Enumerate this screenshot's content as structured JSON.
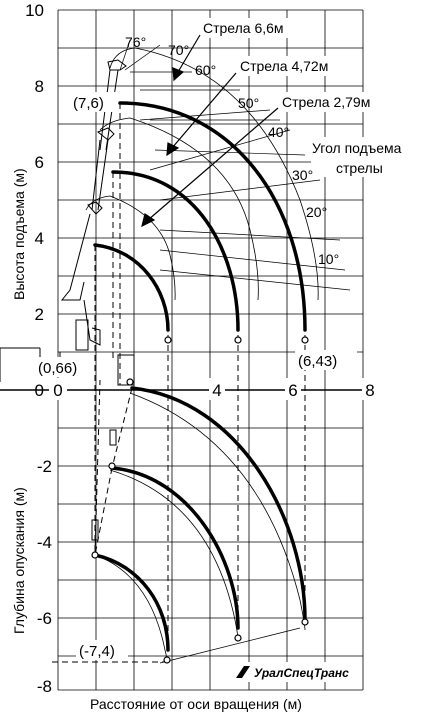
{
  "y_ticks": [
    "10",
    "8",
    "6",
    "4",
    "2",
    "0",
    "-2",
    "-4",
    "-6",
    "-8"
  ],
  "x_ticks": [
    "0",
    "4",
    "6",
    "8"
  ],
  "y_title_upper": "Высота подъема (м)",
  "y_title_lower": "Глубина опускания (м)",
  "x_title": "Расстояние от оси вращения (м)",
  "angle_title_line1": "Угол подъема",
  "angle_title_line2": "стрелы",
  "angles": [
    "76°",
    "70°",
    "60°",
    "50°",
    "40°",
    "30°",
    "20°",
    "10°"
  ],
  "booms": [
    "Стрела 6,6м",
    "Стрела 4,72м",
    "Стрела 2,79м"
  ],
  "points": [
    "(7,6)",
    "(0,66)",
    "(6,43)",
    "(-7,4)"
  ],
  "brand": "УралСпецТранс"
}
